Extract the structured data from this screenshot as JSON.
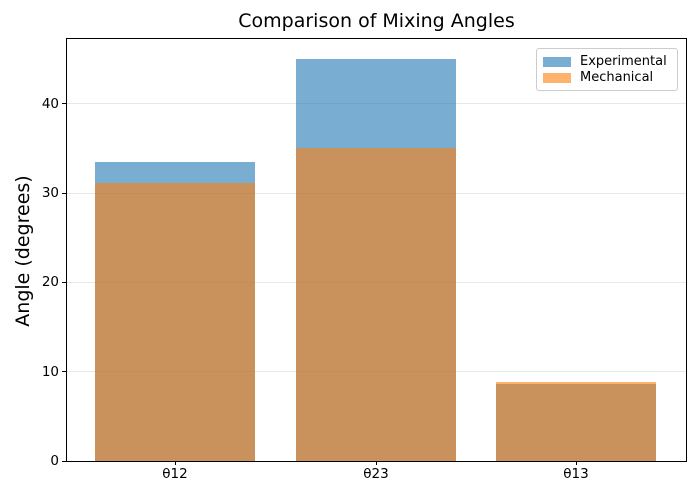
{
  "chart_data": {
    "type": "bar",
    "title": "Comparison of Mixing Angles",
    "xlabel": "",
    "ylabel": "Angle (degrees)",
    "categories": [
      "θ12",
      "θ23",
      "θ13"
    ],
    "series": [
      {
        "name": "Experimental",
        "color": "#1f77b4",
        "values": [
          33.44,
          45.0,
          8.57
        ]
      },
      {
        "name": "Mechanical",
        "color": "#ff7f0e",
        "values": [
          31.1,
          35.0,
          8.9
        ]
      }
    ],
    "bar_style": "overlapping-translucent",
    "bar_alpha": 0.6,
    "ylim": [
      0,
      47.25
    ],
    "yticks": [
      0,
      10,
      20,
      30,
      40
    ],
    "grid": "y",
    "grid_color": "#e8e8e8",
    "background_color": "#ffffff",
    "legend": {
      "position": "upper right",
      "labels": [
        "Experimental",
        "Mechanical"
      ]
    }
  }
}
